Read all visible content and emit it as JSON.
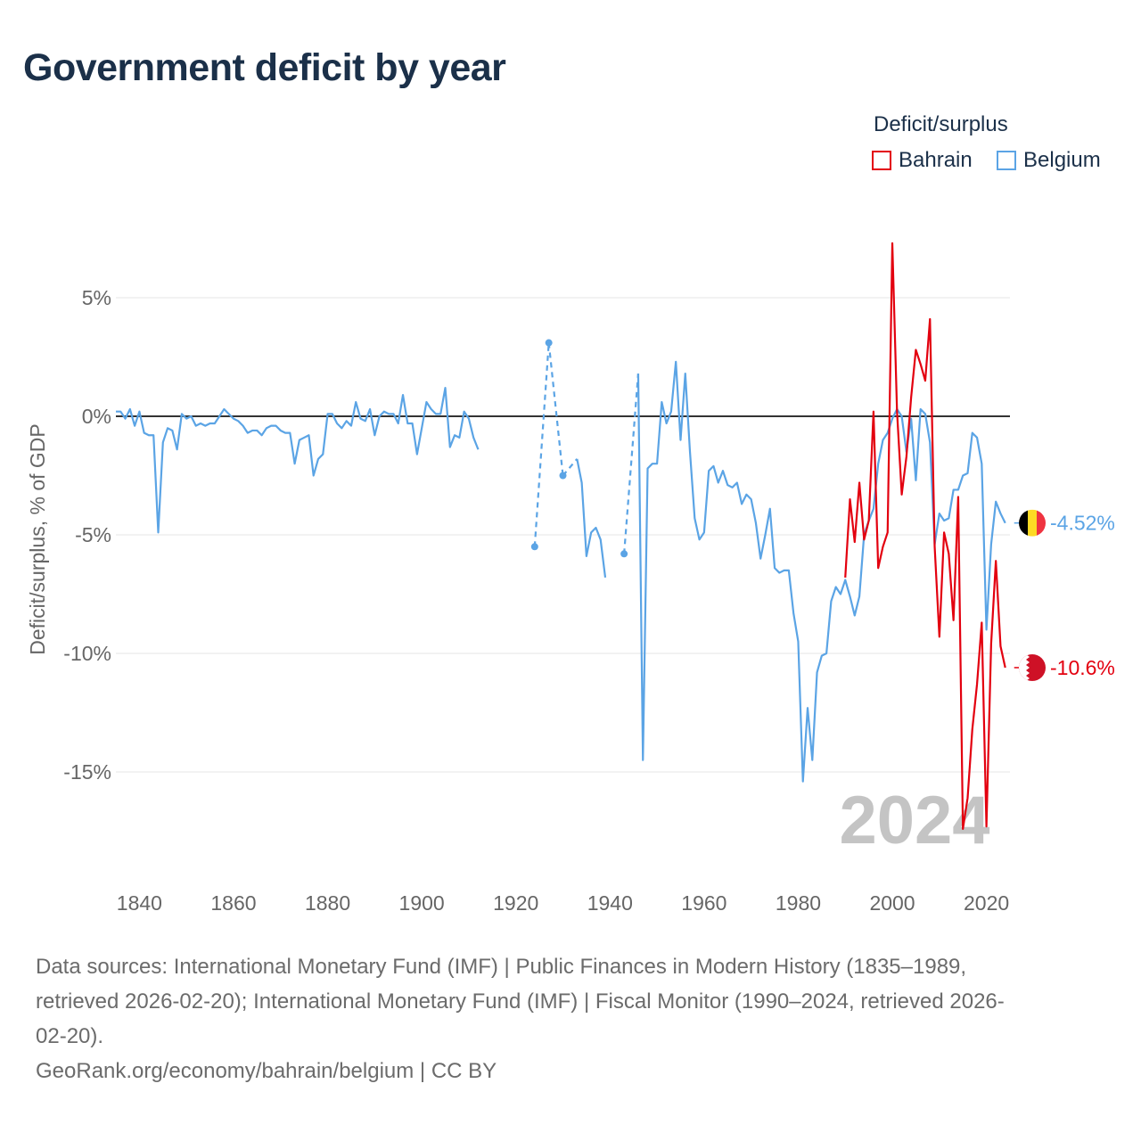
{
  "chart_data": {
    "type": "line",
    "title": "Government deficit by year",
    "ylabel": "Deficit/surplus, % of GDP",
    "xlabel": "",
    "xlim": [
      1835,
      2025
    ],
    "ylim": [
      -19,
      8
    ],
    "yticks": [
      5,
      0,
      -5,
      -10,
      -15
    ],
    "ytick_labels": [
      "5%",
      "0%",
      "-5%",
      "-10%",
      "-15%"
    ],
    "xticks": [
      1840,
      1860,
      1880,
      1900,
      1920,
      1940,
      1960,
      1980,
      2000,
      2020
    ],
    "xtick_labels": [
      "1840",
      "1860",
      "1880",
      "1900",
      "1920",
      "1940",
      "1960",
      "1980",
      "2000",
      "2020"
    ],
    "watermark_year": "2024",
    "legend_title": "Deficit/surplus",
    "legend_position": "top-right",
    "series": [
      {
        "name": "Bahrain",
        "color": "#e3000f",
        "end_label": "-10.6%",
        "flag_icon": "bahrain-flag-icon",
        "x": [
          1990,
          1991,
          1992,
          1993,
          1994,
          1995,
          1996,
          1997,
          1998,
          1999,
          2000,
          2001,
          2002,
          2003,
          2004,
          2005,
          2006,
          2007,
          2008,
          2009,
          2010,
          2011,
          2012,
          2013,
          2014,
          2015,
          2016,
          2017,
          2018,
          2019,
          2020,
          2021,
          2022,
          2023,
          2024
        ],
        "values": [
          -6.8,
          -3.5,
          -5.3,
          -2.8,
          -5.2,
          -4.4,
          0.2,
          -6.4,
          -5.5,
          -4.9,
          7.3,
          0.2,
          -3.3,
          -1.7,
          0.8,
          2.8,
          2.2,
          1.5,
          4.1,
          -5.5,
          -9.3,
          -4.9,
          -5.8,
          -8.6,
          -3.4,
          -17.4,
          -16.1,
          -13.2,
          -11.3,
          -8.7,
          -17.3,
          -9.6,
          -6.1,
          -9.7,
          -10.6
        ]
      },
      {
        "name": "Belgium",
        "color": "#5ba4e5",
        "end_label": "-4.52%",
        "flag_icon": "belgium-flag-icon",
        "x": [
          1835,
          1836,
          1837,
          1838,
          1839,
          1840,
          1841,
          1842,
          1843,
          1844,
          1845,
          1846,
          1847,
          1848,
          1849,
          1850,
          1851,
          1852,
          1853,
          1854,
          1855,
          1856,
          1857,
          1858,
          1859,
          1860,
          1861,
          1862,
          1863,
          1864,
          1865,
          1866,
          1867,
          1868,
          1869,
          1870,
          1871,
          1872,
          1873,
          1874,
          1875,
          1876,
          1877,
          1878,
          1879,
          1880,
          1881,
          1882,
          1883,
          1884,
          1885,
          1886,
          1887,
          1888,
          1889,
          1890,
          1891,
          1892,
          1893,
          1894,
          1895,
          1896,
          1897,
          1898,
          1899,
          1900,
          1901,
          1902,
          1903,
          1904,
          1905,
          1906,
          1907,
          1908,
          1909,
          1910,
          1911,
          1912,
          null,
          1924,
          1927,
          1930,
          1933,
          1934,
          1935,
          1936,
          1937,
          1938,
          1939,
          null,
          1943,
          1946,
          1947,
          1948,
          1949,
          1950,
          1951,
          1952,
          1953,
          1954,
          1955,
          1956,
          1957,
          1958,
          1959,
          1960,
          1961,
          1962,
          1963,
          1964,
          1965,
          1966,
          1967,
          1968,
          1969,
          1970,
          1971,
          1972,
          1973,
          1974,
          1975,
          1976,
          1977,
          1978,
          1979,
          1980,
          1981,
          1982,
          1983,
          1984,
          1985,
          1986,
          1987,
          1988,
          1989,
          1990,
          1991,
          1992,
          1993,
          1994,
          1995,
          1996,
          1997,
          1998,
          1999,
          2000,
          2001,
          2002,
          2003,
          2004,
          2005,
          2006,
          2007,
          2008,
          2009,
          2010,
          2011,
          2012,
          2013,
          2014,
          2015,
          2016,
          2017,
          2018,
          2019,
          2020,
          2021,
          2022,
          2023,
          2024
        ],
        "values": [
          0.2,
          0.2,
          -0.1,
          0.3,
          -0.4,
          0.2,
          -0.7,
          -0.8,
          -0.8,
          -4.9,
          -1.1,
          -0.5,
          -0.6,
          -1.4,
          0.1,
          -0.1,
          0.0,
          -0.4,
          -0.3,
          -0.4,
          -0.3,
          -0.3,
          0.0,
          0.3,
          0.1,
          -0.1,
          -0.2,
          -0.4,
          -0.7,
          -0.6,
          -0.6,
          -0.8,
          -0.5,
          -0.4,
          -0.4,
          -0.6,
          -0.7,
          -0.7,
          -2.0,
          -1.0,
          -0.9,
          -0.8,
          -2.5,
          -1.8,
          -1.6,
          0.1,
          0.1,
          -0.3,
          -0.5,
          -0.2,
          -0.4,
          0.6,
          -0.1,
          -0.2,
          0.3,
          -0.8,
          0.0,
          0.2,
          0.1,
          0.1,
          -0.3,
          0.9,
          -0.3,
          -0.3,
          -1.6,
          -0.5,
          0.6,
          0.3,
          0.1,
          0.1,
          1.2,
          -1.3,
          -0.8,
          -0.9,
          0.2,
          -0.1,
          -0.9,
          -1.4,
          -1.4,
          -5.5,
          3.1,
          -2.5,
          -1.8,
          -2.8,
          -5.9,
          -4.9,
          -4.7,
          -5.2,
          -6.8,
          null,
          -5.8,
          1.8,
          -14.5,
          -2.2,
          -2.0,
          -2.0,
          0.6,
          -0.3,
          0.2,
          2.3,
          -1.0,
          1.8,
          -1.5,
          -4.3,
          -5.2,
          -4.9,
          -2.3,
          -2.1,
          -2.8,
          -2.3,
          -2.9,
          -3.0,
          -2.8,
          -3.7,
          -3.3,
          -3.5,
          -4.5,
          -6.0,
          -5.0,
          -3.9,
          -6.4,
          -6.6,
          -6.5,
          -6.5,
          -8.3,
          -9.5,
          -15.4,
          -12.3,
          -14.5,
          -10.8,
          -10.1,
          -10.0,
          -7.8,
          -7.2,
          -7.5,
          -6.9,
          -7.6,
          -8.4,
          -7.6,
          -5.0,
          -4.4,
          -3.9,
          -2.0,
          -1.0,
          -0.7,
          -0.1,
          0.3,
          0.0,
          -1.5,
          -0.1,
          -2.7,
          0.3,
          0.1,
          -1.1,
          -5.4,
          -4.1,
          -4.4,
          -4.3,
          -3.1,
          -3.1,
          -2.5,
          -2.4,
          -0.7,
          -0.9,
          -2.0,
          -9.0,
          -5.4,
          -3.6,
          -4.1,
          -4.5
        ]
      }
    ]
  },
  "footer": {
    "sources_line1": "Data sources: International Monetary Fund (IMF) | Public Finances in Modern History (1835–1989,",
    "sources_line2": "retrieved 2026-02-20); International Monetary Fund (IMF) | Fiscal Monitor (1990–2024, retrieved 2026-",
    "sources_line3": "02-20).",
    "credit": "GeoRank.org/economy/bahrain/belgium | CC BY"
  }
}
